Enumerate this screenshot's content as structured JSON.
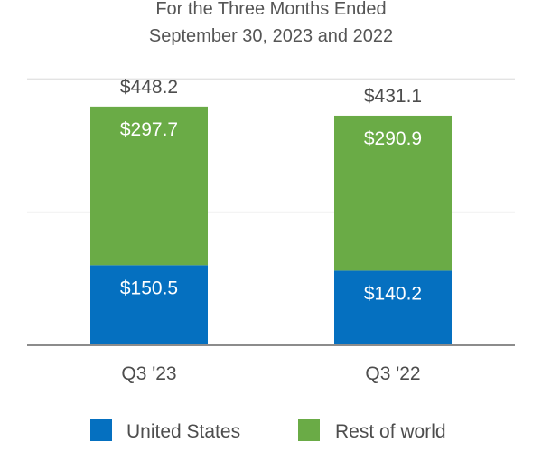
{
  "chart_data": {
    "type": "bar",
    "stacked": true,
    "title_lines": [
      "For the Three Months Ended",
      "September 30, 2023 and 2022"
    ],
    "categories": [
      "Q3 '23",
      "Q3 '22"
    ],
    "series": [
      {
        "name": "United States",
        "values": [
          150.5,
          140.2
        ],
        "labels": [
          "$150.5",
          "$140.2"
        ],
        "color": "#0570c0"
      },
      {
        "name": "Rest of world",
        "values": [
          297.7,
          290.9
        ],
        "labels": [
          "$297.7",
          "$290.9"
        ],
        "color": "#6aab46"
      }
    ],
    "totals": [
      448.2,
      431.1
    ],
    "total_labels": [
      "$448.2",
      "$431.1"
    ],
    "ylim": [
      0,
      500
    ],
    "grid": true,
    "legend": "bottom",
    "xlabel": "",
    "ylabel": ""
  }
}
